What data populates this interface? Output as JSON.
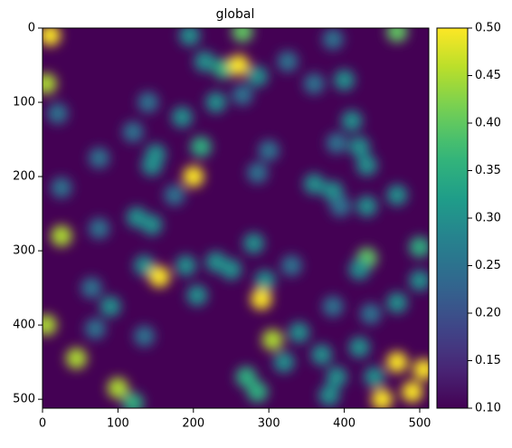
{
  "chart_data": {
    "type": "heatmap",
    "title": "global",
    "colormap": "viridis",
    "xlim": [
      0,
      512
    ],
    "ylim": [
      512,
      0
    ],
    "xticks": [
      0,
      100,
      200,
      300,
      400,
      500
    ],
    "yticks": [
      0,
      100,
      200,
      300,
      400,
      500
    ],
    "clim": [
      0.1,
      0.5
    ],
    "cticks": [
      {
        "value": 0.1,
        "label": "0.10"
      },
      {
        "value": 0.15,
        "label": "0.15"
      },
      {
        "value": 0.2,
        "label": "0.20"
      },
      {
        "value": 0.25,
        "label": "0.25"
      },
      {
        "value": 0.3,
        "label": "0.30"
      },
      {
        "value": 0.35,
        "label": "0.35"
      },
      {
        "value": 0.4,
        "label": "0.40"
      },
      {
        "value": 0.45,
        "label": "0.45"
      },
      {
        "value": 0.5,
        "label": "0.50"
      }
    ],
    "x": [
      10,
      195,
      265,
      470,
      385,
      325,
      240,
      260,
      215,
      285,
      5,
      20,
      360,
      400,
      265,
      230,
      140,
      185,
      410,
      120,
      210,
      150,
      145,
      75,
      300,
      285,
      390,
      420,
      430,
      200,
      25,
      360,
      385,
      395,
      430,
      470,
      175,
      125,
      145,
      25,
      75,
      280,
      500,
      430,
      420,
      135,
      155,
      190,
      230,
      250,
      330,
      295,
      290,
      65,
      90,
      205,
      500,
      470,
      435,
      385,
      5,
      70,
      135,
      305,
      340,
      320,
      420,
      45,
      370,
      390,
      380,
      270,
      285,
      100,
      120,
      490,
      470,
      505,
      450,
      440
    ],
    "y": [
      10,
      10,
      5,
      5,
      15,
      45,
      55,
      50,
      45,
      65,
      75,
      115,
      75,
      70,
      90,
      100,
      100,
      120,
      125,
      140,
      160,
      170,
      185,
      175,
      165,
      195,
      155,
      160,
      185,
      200,
      215,
      210,
      220,
      240,
      240,
      225,
      225,
      255,
      265,
      280,
      270,
      290,
      295,
      310,
      325,
      320,
      335,
      320,
      315,
      325,
      320,
      340,
      365,
      350,
      375,
      360,
      340,
      370,
      385,
      375,
      400,
      405,
      415,
      420,
      410,
      450,
      430,
      445,
      440,
      470,
      495,
      470,
      490,
      485,
      505,
      490,
      450,
      460,
      500,
      470
    ],
    "values": [
      0.5,
      0.3,
      0.4,
      0.4,
      0.25,
      0.25,
      0.35,
      0.5,
      0.3,
      0.3,
      0.45,
      0.25,
      0.25,
      0.3,
      0.25,
      0.3,
      0.25,
      0.3,
      0.3,
      0.25,
      0.35,
      0.3,
      0.3,
      0.25,
      0.25,
      0.25,
      0.25,
      0.3,
      0.3,
      0.5,
      0.25,
      0.3,
      0.3,
      0.25,
      0.3,
      0.3,
      0.25,
      0.3,
      0.3,
      0.45,
      0.25,
      0.3,
      0.35,
      0.4,
      0.3,
      0.3,
      0.5,
      0.3,
      0.3,
      0.3,
      0.25,
      0.3,
      0.5,
      0.25,
      0.3,
      0.3,
      0.3,
      0.3,
      0.25,
      0.25,
      0.45,
      0.25,
      0.25,
      0.45,
      0.3,
      0.3,
      0.3,
      0.45,
      0.3,
      0.3,
      0.3,
      0.35,
      0.35,
      0.45,
      0.35,
      0.5,
      0.5,
      0.5,
      0.5,
      0.3
    ]
  }
}
